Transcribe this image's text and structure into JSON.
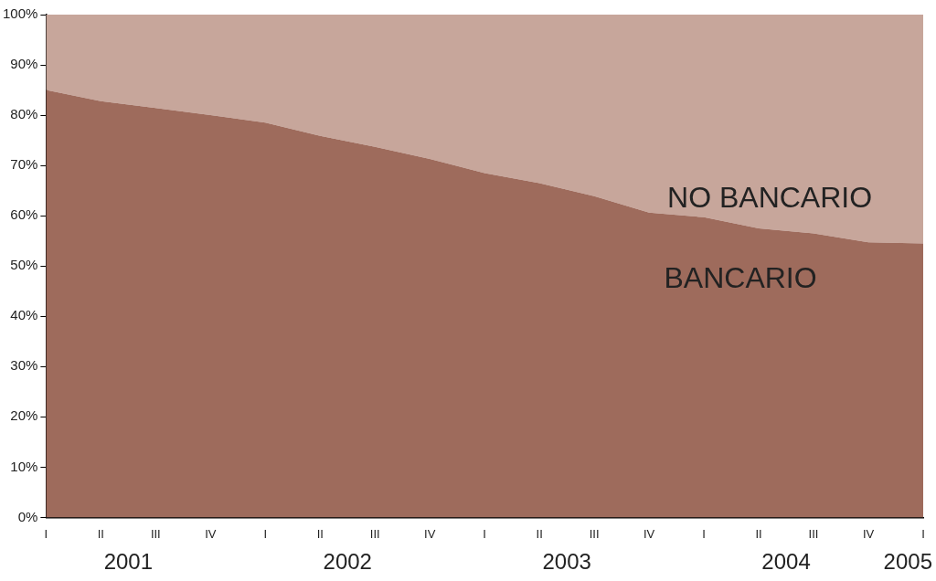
{
  "chart_data": {
    "type": "area",
    "stacked": true,
    "legend": false,
    "grid": false,
    "categories": [
      "I",
      "II",
      "III",
      "IV",
      "I",
      "II",
      "III",
      "IV",
      "I",
      "II",
      "III",
      "IV",
      "I",
      "II",
      "III",
      "IV",
      "I"
    ],
    "series": [
      {
        "name": "BANCARIO",
        "color": "#9e6b5c",
        "values": [
          85,
          82.8,
          81.4,
          80,
          78.5,
          75.9,
          73.7,
          71.3,
          68.5,
          66.5,
          63.9,
          60.6,
          59.7,
          57.5,
          56.5,
          54.7,
          54.5
        ]
      },
      {
        "name": "NO BANCARIO",
        "color": "#c7a69b",
        "values": [
          15,
          17.2,
          18.6,
          20,
          21.5,
          24.1,
          26.3,
          28.7,
          31.5,
          33.5,
          36.1,
          39.4,
          40.3,
          42.5,
          43.5,
          45.3,
          45.5
        ]
      }
    ],
    "ylim": [
      0,
      100
    ],
    "yticks": [
      {
        "value": 0,
        "label": "0%"
      },
      {
        "value": 10,
        "label": "10%"
      },
      {
        "value": 20,
        "label": "20%"
      },
      {
        "value": 30,
        "label": "30%"
      },
      {
        "value": 40,
        "label": "40%"
      },
      {
        "value": 50,
        "label": "50%"
      },
      {
        "value": 60,
        "label": "60%"
      },
      {
        "value": 70,
        "label": "70%"
      },
      {
        "value": 80,
        "label": "80%"
      },
      {
        "value": 90,
        "label": "90%"
      },
      {
        "value": 100,
        "label": "100%"
      }
    ],
    "annotations": [
      "2001",
      "2002",
      "2003",
      "2004",
      "2005"
    ]
  }
}
